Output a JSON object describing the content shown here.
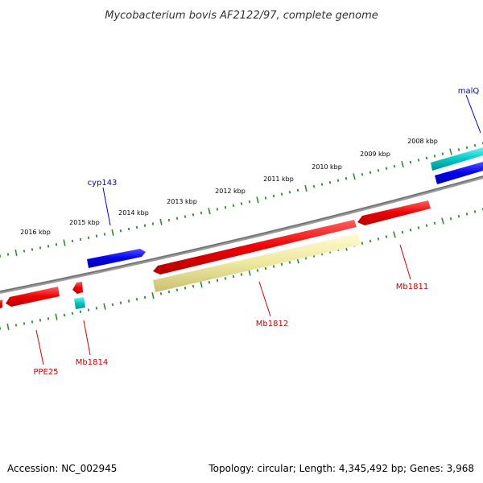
{
  "title": "Mycobacterium bovis AF2122/97, complete genome",
  "footer": {
    "accession": "Accession: NC_002945",
    "summary": "Topology: circular; Length: 4,345,492 bp; Genes: 3,968"
  },
  "colors": {
    "backbone": "#808080",
    "tick": "#2e8b2e",
    "gene_forward": "#0000ee",
    "gene_reverse": "#ee0000",
    "cds_other": "#00c8c8",
    "feature_band": "#eee8a0",
    "label_forward": "#0000cc",
    "label_reverse": "#cc0000"
  },
  "scale": {
    "kbp_labels": [
      "2008 kbp",
      "2009 kbp",
      "2010 kbp",
      "2011 kbp",
      "2012 kbp",
      "2013 kbp",
      "2014 kbp",
      "2015 kbp",
      "2016 kbp"
    ]
  },
  "genes": {
    "malQ": "malQ",
    "cyp143": "cyp143",
    "Mb1811": "Mb1811",
    "Mb1812": "Mb1812",
    "Mb1814": "Mb1814",
    "PPE25": "PPE25"
  }
}
